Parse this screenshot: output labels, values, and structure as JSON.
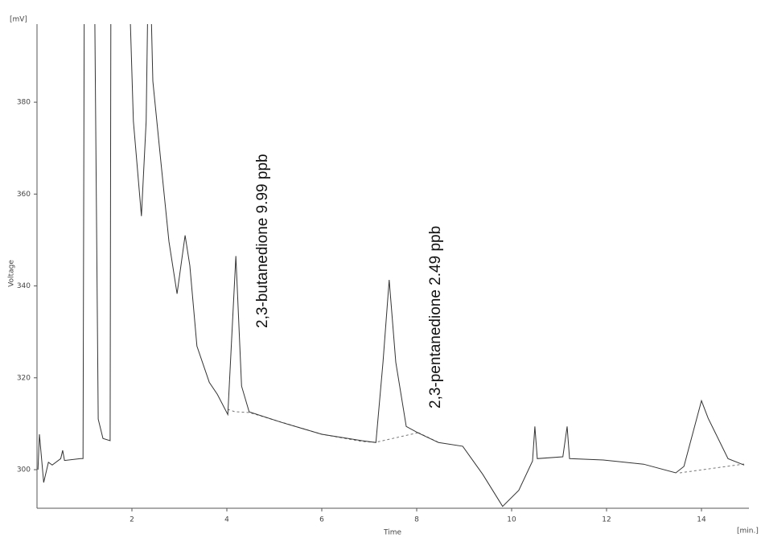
{
  "chart_data": {
    "type": "line",
    "x_label": "Time",
    "y_label": "Voltage",
    "x_unit": "[min.]",
    "y_unit": "[mV]",
    "annotations": [
      "2,3-butanedione 9.99 ppb",
      "2,3-pentanedione 2.49 ppb"
    ],
    "xlim": [
      0,
      15
    ],
    "xticks": [
      2,
      4,
      6,
      8,
      10,
      12,
      14
    ],
    "ylim": [
      291.6,
      397
    ],
    "yticks": [
      300,
      320,
      340,
      360,
      380
    ],
    "grid": false,
    "series": [
      {
        "name": "Voltage",
        "color": "#333333",
        "x": [
          0.02,
          0.05,
          0.14,
          0.24,
          0.32,
          0.5,
          0.54,
          0.58,
          0.92,
          0.97,
          1.0,
          1.2,
          1.29,
          1.39,
          1.54,
          1.56,
          1.9,
          2.03,
          2.2,
          2.3,
          2.36,
          2.44,
          2.61,
          2.78,
          2.95,
          3.12,
          3.22,
          3.37,
          3.63,
          3.8,
          4.02,
          4.19,
          4.31,
          4.47,
          5.15,
          6.0,
          6.85,
          7.14,
          7.29,
          7.42,
          7.56,
          7.78,
          8.03,
          8.46,
          8.97,
          9.39,
          9.81,
          10.15,
          10.44,
          10.49,
          10.54,
          11.08,
          11.17,
          11.22,
          11.93,
          12.78,
          13.46,
          13.63,
          14.0,
          14.14,
          14.56,
          14.9
        ],
        "values": [
          300,
          307.7,
          297.2,
          301.6,
          301,
          302.4,
          304.2,
          302,
          302.4,
          302.4,
          420,
          420,
          311,
          306.8,
          306.3,
          420,
          420,
          375.9,
          355.2,
          375.9,
          420,
          384.6,
          367,
          349.7,
          338.3,
          351,
          344.4,
          326.9,
          319,
          316.4,
          312,
          346.5,
          318.2,
          312.6,
          310.3,
          307.7,
          306.3,
          305.9,
          323.4,
          341.3,
          323.4,
          309.4,
          308,
          305.9,
          305.1,
          299,
          292,
          295.5,
          301.9,
          309.4,
          302.4,
          302.8,
          309.4,
          302.4,
          302.1,
          301.2,
          299.3,
          300.7,
          315,
          311.2,
          302.4,
          301
        ]
      }
    ]
  }
}
